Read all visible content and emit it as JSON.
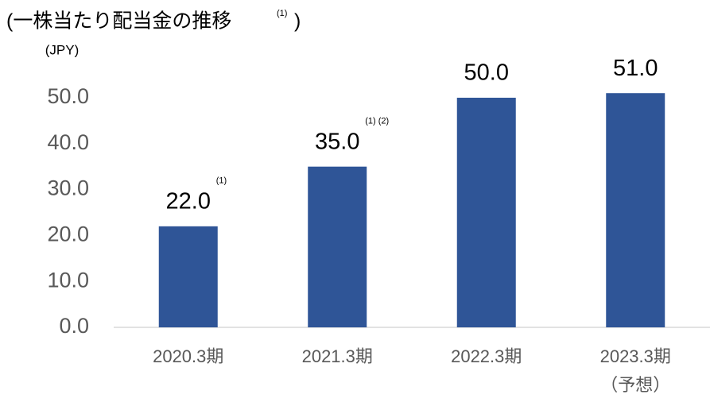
{
  "chart_data": {
    "type": "bar",
    "title": "(一株当たり配当金の推移",
    "title_note": "(1)",
    "title_close": ")",
    "y_label": "(JPY)",
    "categories": [
      "2020.3期",
      "2021.3期",
      "2022.3期",
      "2023.3期"
    ],
    "category_sublabels": [
      null,
      null,
      null,
      "（予想）"
    ],
    "values": [
      22.0,
      35.0,
      50.0,
      51.0
    ],
    "value_labels": [
      "22.0",
      "35.0",
      "50.0",
      "51.0"
    ],
    "value_notes": [
      "(1)",
      "(1) (2)",
      null,
      null
    ],
    "color": "#2f5597",
    "ylim": [
      0,
      50
    ],
    "yticks": [
      {
        "value": 0,
        "label": "0.0"
      },
      {
        "value": 10,
        "label": "10.0"
      },
      {
        "value": 20,
        "label": "20.0"
      },
      {
        "value": 30,
        "label": "30.0"
      },
      {
        "value": 40,
        "label": "40.0"
      },
      {
        "value": 50,
        "label": "50.0"
      }
    ],
    "grid": false
  }
}
